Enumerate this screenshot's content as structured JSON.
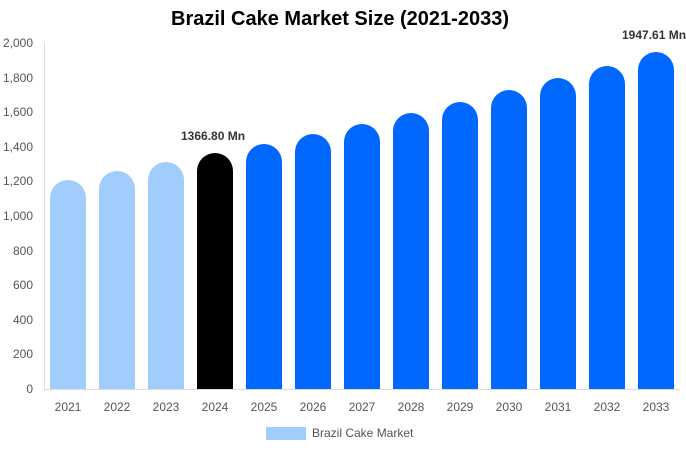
{
  "title": "Brazil Cake Market Size (2021-2033)",
  "legend": {
    "label": "Brazil Cake Market",
    "color": "#a0cdfc"
  },
  "colors": {
    "historical": "#a0cdfc",
    "base_year": "#000000",
    "forecast": "#0068ff"
  },
  "y_ticks": [
    "0",
    "200",
    "400",
    "600",
    "800",
    "1,000",
    "1,200",
    "1,400",
    "1,600",
    "1,800",
    "2,000"
  ],
  "annotations": [
    {
      "year": "2024",
      "text": "1366.80 Mn"
    },
    {
      "year": "2033",
      "text": "1947.61 Mn"
    }
  ],
  "chart_data": {
    "type": "bar",
    "title": "Brazil Cake Market Size (2021-2033)",
    "xlabel": "",
    "ylabel": "",
    "ylim": [
      0,
      2000
    ],
    "grid": false,
    "legend_position": "bottom",
    "categories": [
      "2021",
      "2022",
      "2023",
      "2024",
      "2025",
      "2026",
      "2027",
      "2028",
      "2029",
      "2030",
      "2031",
      "2032",
      "2033"
    ],
    "series": [
      {
        "name": "Brazil Cake Market",
        "values": [
          1208,
          1260,
          1312,
          1366.8,
          1418,
          1474,
          1532,
          1595,
          1659,
          1728,
          1798,
          1867,
          1947.61
        ]
      }
    ],
    "bar_colors": [
      "#a0cdfc",
      "#a0cdfc",
      "#a0cdfc",
      "#000000",
      "#0068ff",
      "#0068ff",
      "#0068ff",
      "#0068ff",
      "#0068ff",
      "#0068ff",
      "#0068ff",
      "#0068ff",
      "#0068ff"
    ],
    "annotations": [
      {
        "category": "2024",
        "text": "1366.80 Mn"
      },
      {
        "category": "2033",
        "text": "1947.61 Mn"
      }
    ]
  }
}
